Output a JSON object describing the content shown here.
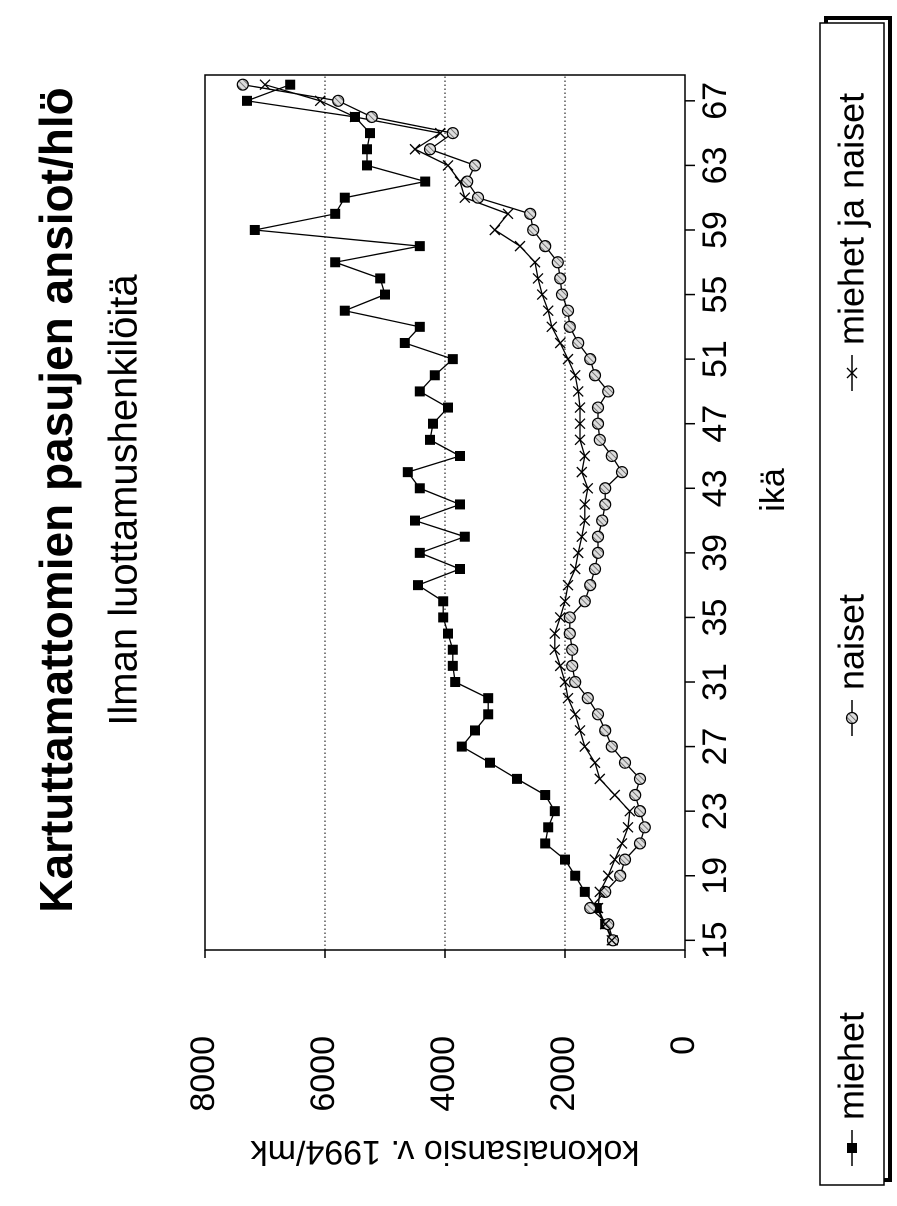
{
  "chart_data": {
    "type": "line",
    "title": "Kartuttamattomien pasujen ansiot/hlö",
    "subtitle": "Ilman luottamushenkilöitä",
    "x_label": "ikä",
    "y_label": "kokonaisansio v. 1994/mk",
    "x": [
      15,
      16,
      17,
      18,
      19,
      20,
      21,
      22,
      23,
      24,
      25,
      26,
      27,
      28,
      29,
      30,
      31,
      32,
      33,
      34,
      35,
      36,
      37,
      38,
      39,
      40,
      41,
      42,
      43,
      44,
      45,
      46,
      47,
      48,
      49,
      50,
      51,
      52,
      53,
      54,
      55,
      56,
      57,
      58,
      59,
      60,
      61,
      62,
      63,
      64,
      65,
      66,
      67,
      68
    ],
    "xlim": [
      14.4,
      68.6
    ],
    "xticks": [
      15,
      19,
      23,
      27,
      31,
      35,
      39,
      43,
      47,
      51,
      55,
      59,
      63,
      67
    ],
    "ylim": [
      0,
      8000
    ],
    "yticks": [
      0,
      2000,
      4000,
      6000,
      8000
    ],
    "grid": true,
    "legend": "bottom",
    "series": [
      {
        "name": "miehet",
        "color": "#000000",
        "marker": "square",
        "values": [
          1200,
          1330,
          1470,
          1670,
          1830,
          2000,
          2330,
          2280,
          2170,
          2330,
          2800,
          3250,
          3720,
          3500,
          3280,
          3280,
          3830,
          3870,
          3870,
          3950,
          4030,
          4030,
          4450,
          3750,
          4420,
          3670,
          4500,
          3750,
          4420,
          4620,
          3750,
          4250,
          4200,
          3950,
          4420,
          4170,
          3870,
          4670,
          4420,
          5670,
          5000,
          5080,
          5830,
          4420,
          7170,
          5830,
          5670,
          4330,
          5300,
          5300,
          5250,
          5500,
          7300,
          6580
        ]
      },
      {
        "name": "naiset",
        "color": "#000000",
        "marker": "circle",
        "values": [
          1200,
          1280,
          1580,
          1330,
          1080,
          1000,
          750,
          670,
          750,
          830,
          750,
          1000,
          1220,
          1330,
          1450,
          1620,
          1830,
          1880,
          1880,
          1920,
          1920,
          1670,
          1580,
          1500,
          1450,
          1450,
          1380,
          1330,
          1330,
          1050,
          1220,
          1420,
          1450,
          1450,
          1280,
          1500,
          1580,
          1780,
          1920,
          1950,
          2050,
          2080,
          2120,
          2330,
          2530,
          2580,
          3450,
          3630,
          3500,
          4250,
          3870,
          5220,
          5780,
          7370
        ]
      },
      {
        "name": "miehet ja naiset",
        "color": "#000000",
        "marker": "cross",
        "values": [
          1220,
          1330,
          1450,
          1420,
          1280,
          1170,
          1050,
          950,
          920,
          1170,
          1420,
          1500,
          1670,
          1750,
          1830,
          1950,
          2000,
          2080,
          2170,
          2170,
          2080,
          2000,
          1950,
          1830,
          1780,
          1720,
          1670,
          1670,
          1620,
          1720,
          1670,
          1750,
          1750,
          1750,
          1780,
          1830,
          1950,
          2080,
          2220,
          2280,
          2380,
          2450,
          2500,
          2750,
          3170,
          2950,
          3670,
          3750,
          3950,
          4500,
          4080,
          5500,
          6080,
          7000
        ]
      }
    ]
  }
}
